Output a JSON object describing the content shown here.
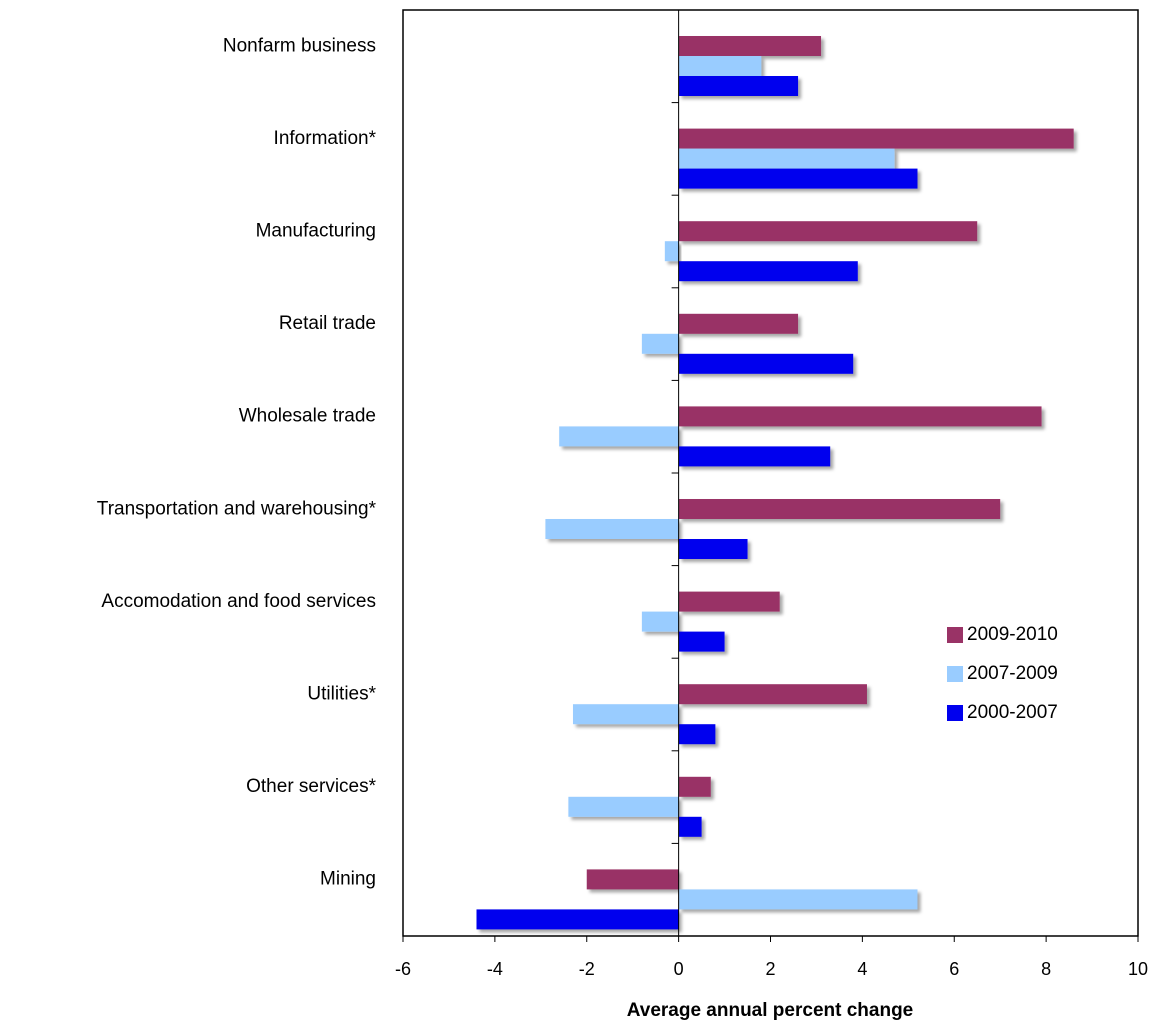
{
  "chart_data": {
    "type": "bar",
    "orientation": "horizontal",
    "x_label": "Average annual percent change",
    "categories": [
      "Nonfarm business",
      "Information*",
      "Manufacturing",
      "Retail trade",
      "Wholesale trade",
      "Transportation and warehousing*",
      "Accomodation and food services",
      "Utilities*",
      "Other services*",
      "Mining"
    ],
    "series": [
      {
        "name": "2009-2010",
        "color": "#993366",
        "values": [
          3.1,
          8.6,
          6.5,
          2.6,
          7.9,
          7.0,
          2.2,
          4.1,
          0.7,
          -2.0
        ]
      },
      {
        "name": "2007-2009",
        "color": "#99ccff",
        "values": [
          1.8,
          4.7,
          -0.3,
          -0.8,
          -2.6,
          -2.9,
          -0.8,
          -2.3,
          -2.4,
          5.2
        ]
      },
      {
        "name": "2000-2007",
        "color": "#0000ee",
        "values": [
          2.6,
          5.2,
          3.9,
          3.8,
          3.3,
          1.5,
          1.0,
          0.8,
          0.5,
          -4.4
        ]
      }
    ],
    "xlim": [
      -6,
      10
    ],
    "xticks": [
      -6,
      -4,
      -2,
      0,
      2,
      4,
      6,
      8,
      10
    ],
    "legend_position": "right"
  }
}
